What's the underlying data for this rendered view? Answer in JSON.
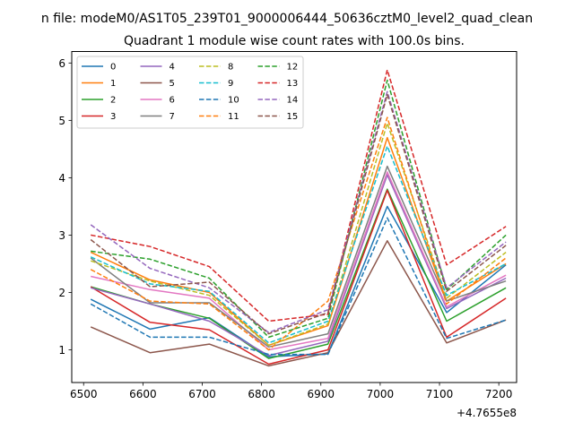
{
  "chart_data": {
    "type": "line",
    "suptitle": "n file: modeM0/AS1T05_239T01_9000006444_50636cztM0_level2_quad_clean",
    "title": "Quadrant 1 module wise count rates with 100.0s bins.",
    "xlabel": "",
    "ylabel": "",
    "x_offset_label": "+4.7655e8",
    "x": [
      6512,
      6612,
      6712,
      6812,
      6912,
      7012,
      7112,
      7212
    ],
    "xlim": [
      6480,
      7230
    ],
    "ylim": [
      0.43,
      6.2
    ],
    "xticks": [
      6500,
      6600,
      6700,
      6800,
      6900,
      7000,
      7100,
      7200
    ],
    "yticks": [
      1,
      2,
      3,
      4,
      5,
      6
    ],
    "legend_location": "upper-left",
    "series": [
      {
        "name": "0",
        "color": "#1f77b4",
        "dash": false,
        "values": [
          1.88,
          1.36,
          1.56,
          0.88,
          0.93,
          3.5,
          1.65,
          2.48
        ]
      },
      {
        "name": "1",
        "color": "#ff7f0e",
        "dash": false,
        "values": [
          2.7,
          2.22,
          2.0,
          1.08,
          1.42,
          4.7,
          1.85,
          2.5
        ]
      },
      {
        "name": "2",
        "color": "#2ca02c",
        "dash": false,
        "values": [
          2.1,
          1.8,
          1.55,
          0.85,
          1.1,
          3.8,
          1.5,
          2.08
        ]
      },
      {
        "name": "3",
        "color": "#d62728",
        "dash": false,
        "values": [
          2.1,
          1.48,
          1.35,
          0.75,
          1.0,
          3.78,
          1.22,
          1.9
        ]
      },
      {
        "name": "4",
        "color": "#9467bd",
        "dash": false,
        "values": [
          2.08,
          1.8,
          1.5,
          0.9,
          1.15,
          4.05,
          1.72,
          2.25
        ]
      },
      {
        "name": "5",
        "color": "#8c564b",
        "dash": false,
        "values": [
          1.4,
          0.95,
          1.1,
          0.72,
          0.95,
          2.9,
          1.12,
          1.52
        ]
      },
      {
        "name": "6",
        "color": "#e377c2",
        "dash": false,
        "values": [
          2.28,
          2.05,
          1.9,
          1.0,
          1.2,
          4.1,
          1.75,
          2.3
        ]
      },
      {
        "name": "7",
        "color": "#7f7f7f",
        "dash": false,
        "values": [
          2.6,
          1.82,
          1.82,
          1.05,
          1.28,
          4.2,
          1.85,
          2.2
        ]
      },
      {
        "name": "8",
        "color": "#bcbd22",
        "dash": true,
        "values": [
          2.55,
          2.2,
          1.95,
          1.08,
          1.45,
          4.95,
          1.9,
          2.7
        ]
      },
      {
        "name": "9",
        "color": "#17becf",
        "dash": true,
        "values": [
          2.62,
          2.15,
          2.02,
          1.12,
          1.5,
          4.55,
          1.95,
          2.5
        ]
      },
      {
        "name": "10",
        "color": "#1f77b4",
        "dash": true,
        "values": [
          1.8,
          1.22,
          1.22,
          0.92,
          0.92,
          3.3,
          1.2,
          1.52
        ]
      },
      {
        "name": "11",
        "color": "#ff7f0e",
        "dash": true,
        "values": [
          2.4,
          1.85,
          1.8,
          1.0,
          1.85,
          5.05,
          1.8,
          2.6
        ]
      },
      {
        "name": "12",
        "color": "#2ca02c",
        "dash": true,
        "values": [
          2.72,
          2.58,
          2.25,
          1.22,
          1.55,
          5.7,
          2.05,
          3.0
        ]
      },
      {
        "name": "13",
        "color": "#d62728",
        "dash": true,
        "values": [
          3.0,
          2.8,
          2.45,
          1.5,
          1.62,
          5.88,
          2.48,
          3.15
        ]
      },
      {
        "name": "14",
        "color": "#9467bd",
        "dash": true,
        "values": [
          3.18,
          2.42,
          2.08,
          1.3,
          1.7,
          5.5,
          2.08,
          2.88
        ]
      },
      {
        "name": "15",
        "color": "#8c564b",
        "dash": true,
        "values": [
          2.92,
          2.1,
          2.18,
          1.28,
          1.65,
          5.45,
          2.02,
          2.82
        ]
      }
    ]
  }
}
